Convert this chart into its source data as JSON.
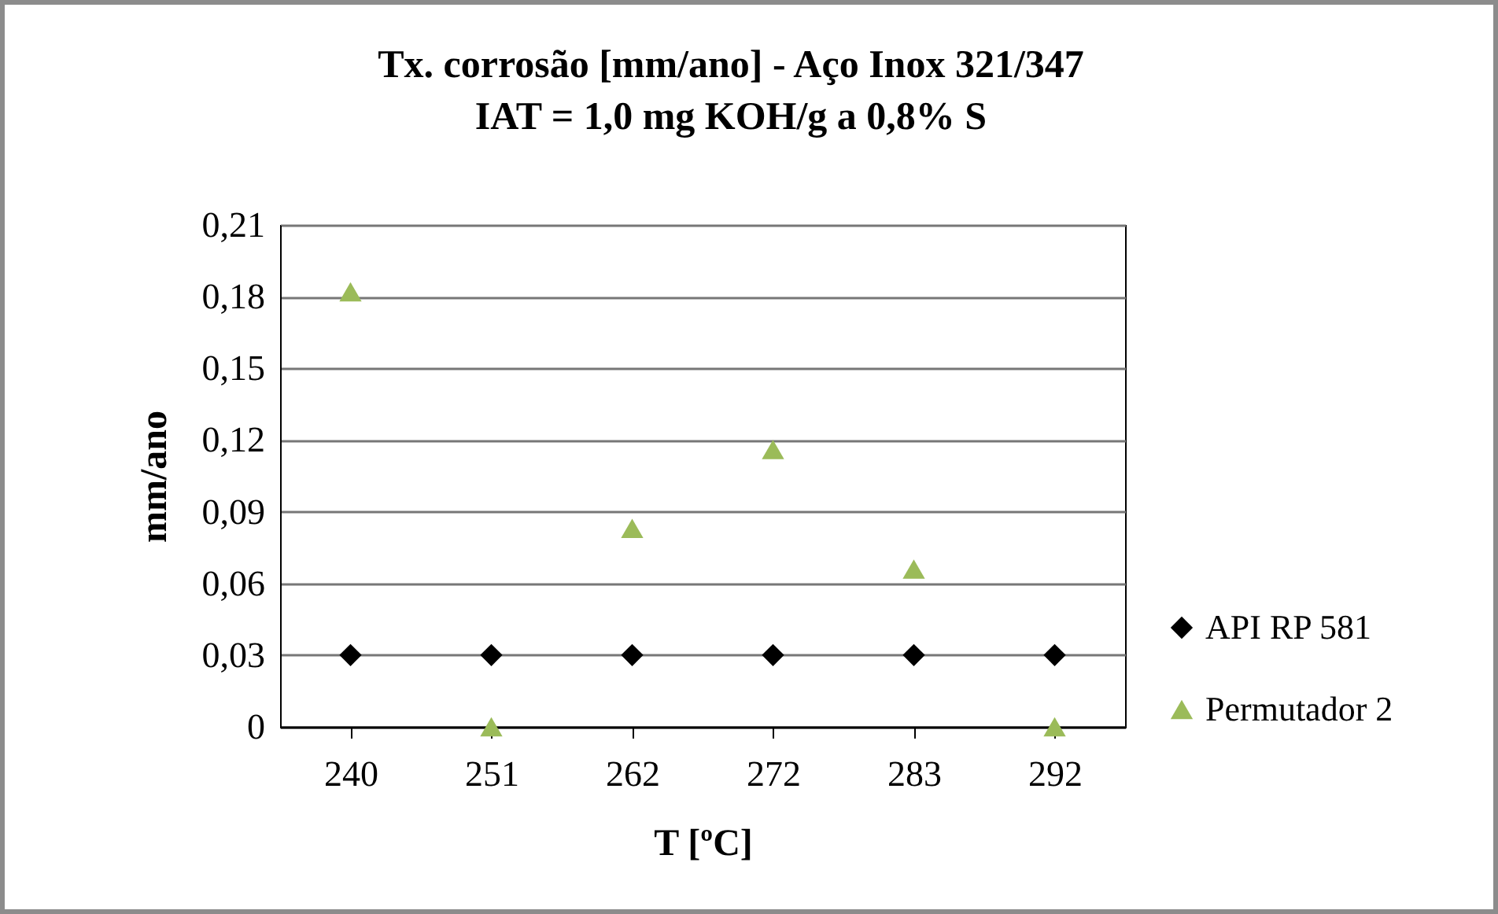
{
  "chart_data": {
    "type": "scatter",
    "title": "Tx. corrosão [mm/ano] - Aço Inox 321/347",
    "subtitle": "IAT = 1,0 mg KOH/g a 0,8% S",
    "xlabel": "T [ºC]",
    "ylabel": "mm/ano",
    "categories": [
      "240",
      "251",
      "262",
      "272",
      "283",
      "292"
    ],
    "series": [
      {
        "name": "API RP 581",
        "color": "#000000",
        "marker": "diamond",
        "values": [
          0.03,
          0.03,
          0.03,
          0.03,
          0.03,
          0.03
        ]
      },
      {
        "name": "Permutador 2",
        "color": "#9bbb59",
        "marker": "triangle",
        "values": [
          0.182,
          0,
          0.083,
          0.116,
          0.066,
          0
        ]
      }
    ],
    "ylim": [
      0,
      0.21
    ],
    "yticks": [
      0,
      {
        "value": 0.03,
        "label": "0,03"
      },
      {
        "value": 0.06,
        "label": "0,06"
      },
      {
        "value": 0.09,
        "label": "0,09"
      },
      {
        "value": 0.12,
        "label": "0,12"
      },
      {
        "value": 0.15,
        "label": "0,15"
      },
      {
        "value": 0.18,
        "label": "0,18"
      },
      {
        "value": 0.21,
        "label": "0,21"
      }
    ],
    "grid": "y",
    "legend": "right"
  }
}
